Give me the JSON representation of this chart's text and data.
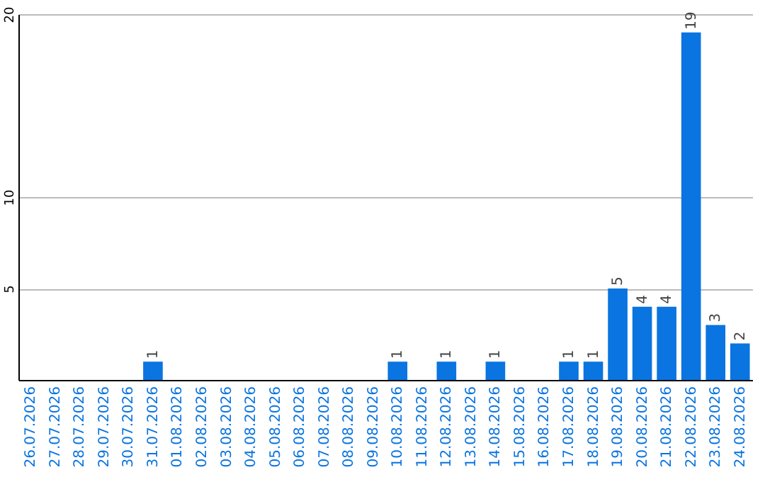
{
  "chart_data": {
    "type": "bar",
    "categories": [
      "26.07.2026",
      "27.07.2026",
      "28.07.2026",
      "29.07.2026",
      "30.07.2026",
      "31.07.2026",
      "01.08.2026",
      "02.08.2026",
      "03.08.2026",
      "04.08.2026",
      "05.08.2026",
      "06.08.2026",
      "07.08.2026",
      "08.08.2026",
      "09.08.2026",
      "10.08.2026",
      "11.08.2026",
      "12.08.2026",
      "13.08.2026",
      "14.08.2026",
      "15.08.2026",
      "16.08.2026",
      "17.08.2026",
      "18.08.2026",
      "19.08.2026",
      "20.08.2026",
      "21.08.2026",
      "22.08.2026",
      "23.08.2026",
      "24.08.2026"
    ],
    "values": [
      0,
      0,
      0,
      0,
      0,
      1,
      0,
      0,
      0,
      0,
      0,
      0,
      0,
      0,
      0,
      1,
      0,
      1,
      0,
      1,
      0,
      0,
      1,
      1,
      5,
      4,
      4,
      19,
      3,
      2
    ],
    "value_labels": [
      null,
      null,
      null,
      null,
      null,
      "1",
      null,
      null,
      null,
      null,
      null,
      null,
      null,
      null,
      null,
      "1",
      null,
      "1",
      null,
      "1",
      null,
      null,
      "1",
      "1",
      "5",
      "4",
      "4",
      "19",
      "3",
      "2"
    ],
    "color": "#0a74e0",
    "ylim": [
      0,
      20
    ],
    "yticks": [
      5,
      10,
      20
    ],
    "grid": "y"
  }
}
